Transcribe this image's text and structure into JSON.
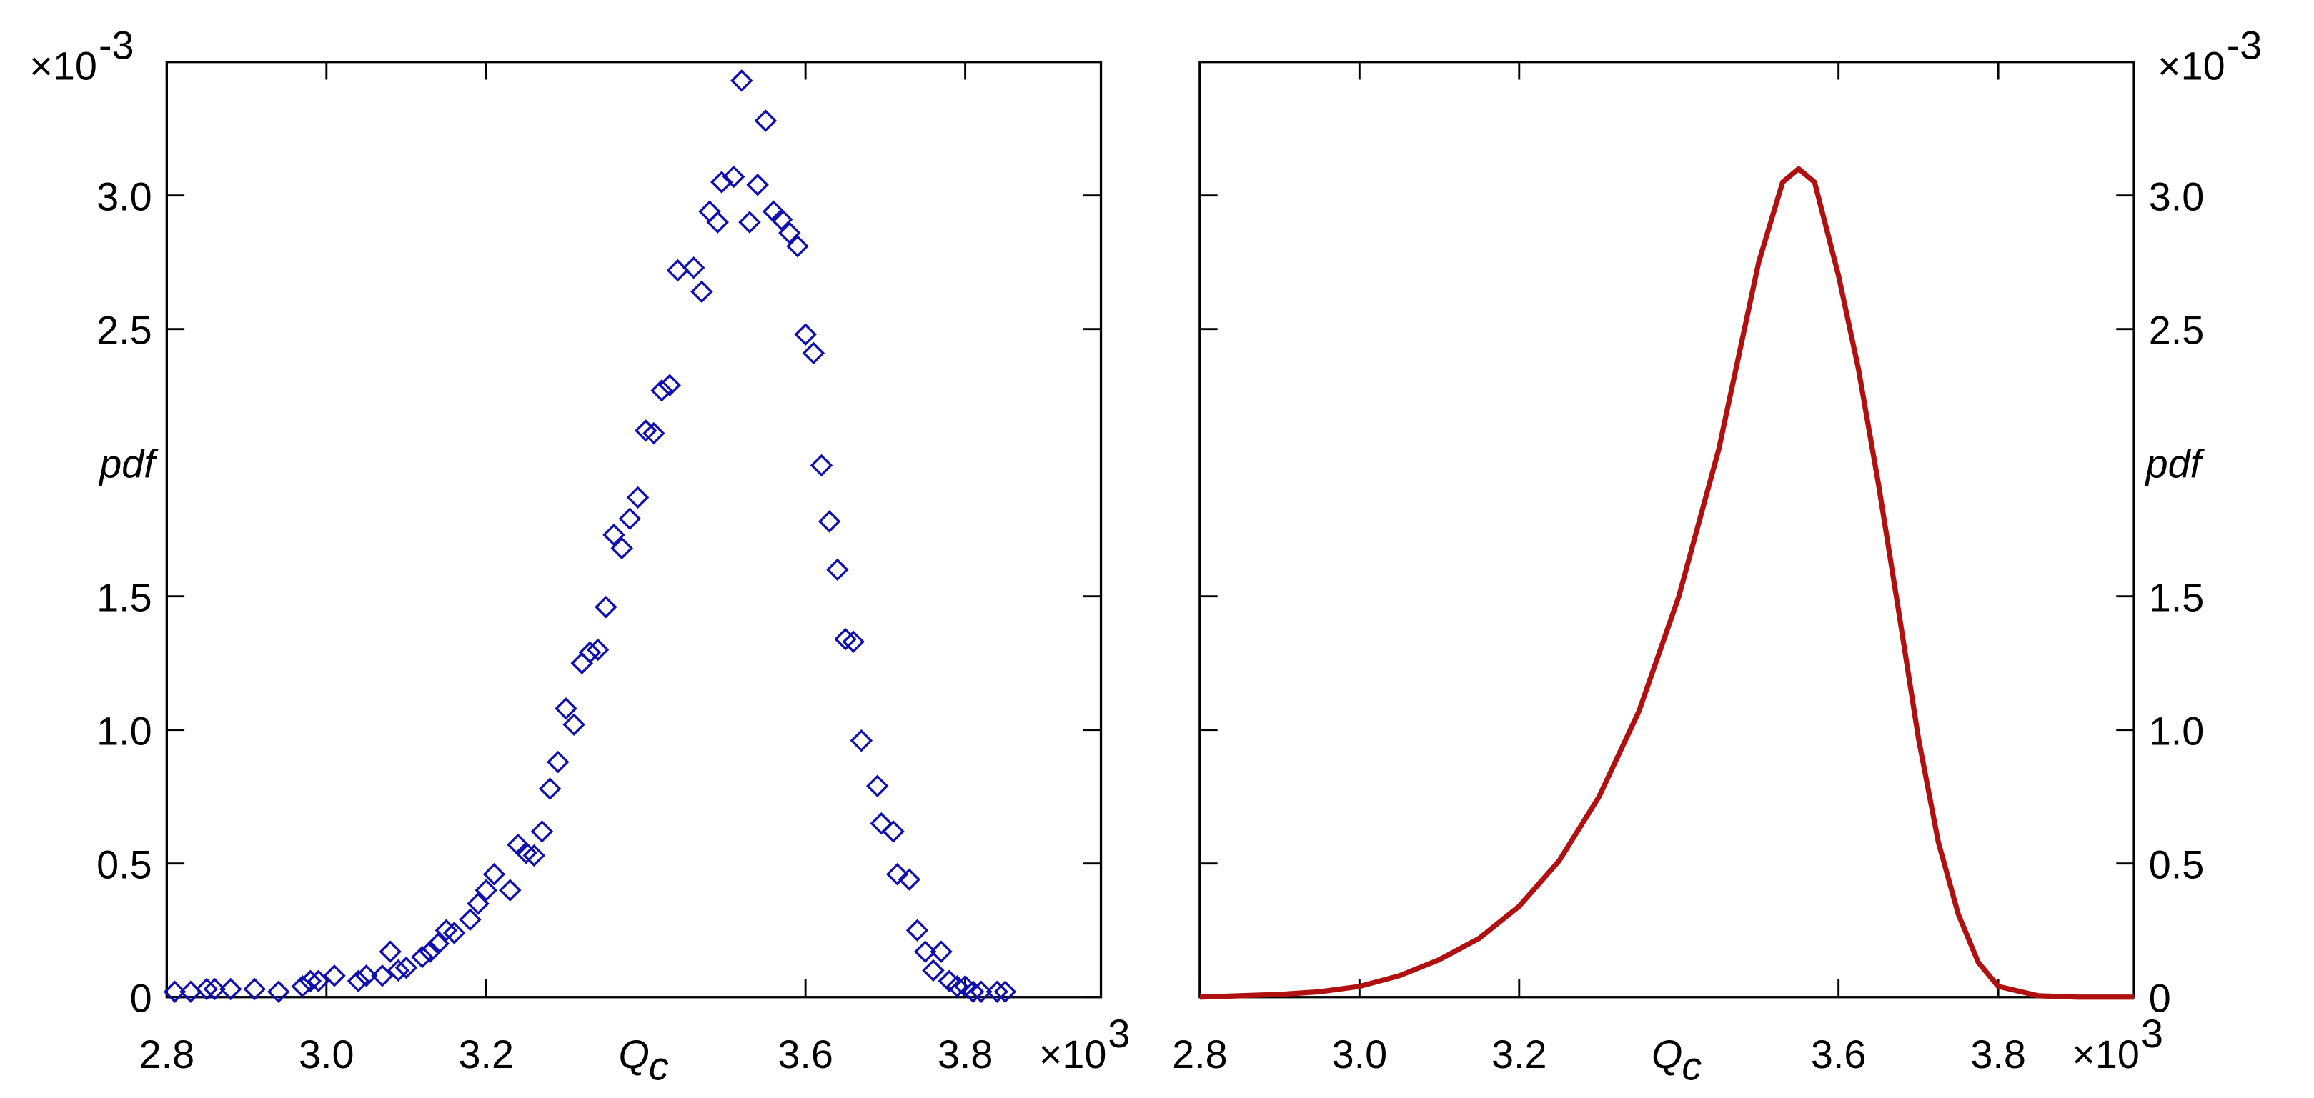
{
  "chart_data": [
    {
      "type": "scatter",
      "marker": "diamond",
      "color": "#1010b0",
      "y_axis_side": "left",
      "xlabel": {
        "main": "Q",
        "sub": "c"
      },
      "ylabel": "pdf",
      "x_multiplier": {
        "base": "×10",
        "exponent": "3"
      },
      "y_multiplier": {
        "base": "×10",
        "exponent": "-3"
      },
      "xlim": [
        2.8,
        3.97
      ],
      "ylim": [
        0,
        3.5
      ],
      "xticks": [
        2.8,
        {
          "value": 3,
          "label": "3.0"
        },
        3.2,
        3.6,
        3.8
      ],
      "yticks": [
        0,
        0.5,
        {
          "value": 1,
          "label": "1.0"
        },
        1.5,
        2.5,
        {
          "value": 3,
          "label": "3.0"
        }
      ],
      "x": [
        2.81,
        2.83,
        2.85,
        2.86,
        2.88,
        2.91,
        2.94,
        2.97,
        2.98,
        2.99,
        3.01,
        3.04,
        3.05,
        3.07,
        3.08,
        3.09,
        3.1,
        3.12,
        3.13,
        3.14,
        3.15,
        3.16,
        3.18,
        3.19,
        3.2,
        3.21,
        3.23,
        3.24,
        3.25,
        3.26,
        3.27,
        3.28,
        3.29,
        3.3,
        3.31,
        3.32,
        3.33,
        3.34,
        3.35,
        3.36,
        3.37,
        3.38,
        3.39,
        3.4,
        3.41,
        3.42,
        3.43,
        3.44,
        3.46,
        3.47,
        3.48,
        3.49,
        3.495,
        3.51,
        3.52,
        3.53,
        3.54,
        3.55,
        3.56,
        3.57,
        3.58,
        3.59,
        3.6,
        3.61,
        3.62,
        3.63,
        3.64,
        3.65,
        3.66,
        3.67,
        3.69,
        3.695,
        3.71,
        3.715,
        3.73,
        3.74,
        3.75,
        3.76,
        3.77,
        3.78,
        3.79,
        3.8,
        3.81,
        3.82,
        3.84,
        3.85
      ],
      "values": [
        0.02,
        0.02,
        0.03,
        0.03,
        0.03,
        0.03,
        0.02,
        0.04,
        0.06,
        0.06,
        0.08,
        0.06,
        0.08,
        0.08,
        0.17,
        0.1,
        0.11,
        0.15,
        0.17,
        0.2,
        0.25,
        0.24,
        0.29,
        0.35,
        0.4,
        0.46,
        0.4,
        0.57,
        0.54,
        0.53,
        0.62,
        0.78,
        0.88,
        1.08,
        1.02,
        1.25,
        1.29,
        1.3,
        1.46,
        1.73,
        1.68,
        1.79,
        1.87,
        2.12,
        2.11,
        2.27,
        2.29,
        2.72,
        2.73,
        2.64,
        2.94,
        2.9,
        3.05,
        3.07,
        3.43,
        2.9,
        3.04,
        3.28,
        2.94,
        2.91,
        2.86,
        2.81,
        2.48,
        2.41,
        1.99,
        1.78,
        1.6,
        1.34,
        1.33,
        0.96,
        0.79,
        0.65,
        0.62,
        0.46,
        0.44,
        0.25,
        0.17,
        0.1,
        0.17,
        0.06,
        0.04,
        0.04,
        0.02,
        0.02,
        0.02,
        0.02
      ]
    },
    {
      "type": "line",
      "color": "#b01010",
      "y_axis_side": "right",
      "xlabel": {
        "main": "Q",
        "sub": "c"
      },
      "ylabel": "pdf",
      "x_multiplier": {
        "base": "×10",
        "exponent": "3"
      },
      "y_multiplier": {
        "base": "×10",
        "exponent": "-3"
      },
      "xlim": [
        2.8,
        3.97
      ],
      "ylim": [
        0,
        3.5
      ],
      "xticks": [
        2.8,
        {
          "value": 3,
          "label": "3.0"
        },
        3.2,
        3.6,
        3.8
      ],
      "yticks": [
        0,
        0.5,
        {
          "value": 1,
          "label": "1.0"
        },
        1.5,
        2.5,
        {
          "value": 3,
          "label": "3.0"
        }
      ],
      "x": [
        2.8,
        2.85,
        2.9,
        2.95,
        3.0,
        3.05,
        3.1,
        3.15,
        3.2,
        3.25,
        3.3,
        3.35,
        3.4,
        3.45,
        3.5,
        3.53,
        3.55,
        3.57,
        3.6,
        3.625,
        3.65,
        3.675,
        3.7,
        3.725,
        3.75,
        3.775,
        3.8,
        3.85,
        3.9,
        3.97
      ],
      "values": [
        0,
        0.005,
        0.01,
        0.02,
        0.04,
        0.08,
        0.14,
        0.22,
        0.34,
        0.51,
        0.75,
        1.07,
        1.5,
        2.05,
        2.75,
        3.05,
        3.1,
        3.05,
        2.7,
        2.35,
        1.92,
        1.45,
        0.97,
        0.58,
        0.31,
        0.13,
        0.04,
        0.005,
        0,
        0
      ]
    }
  ]
}
